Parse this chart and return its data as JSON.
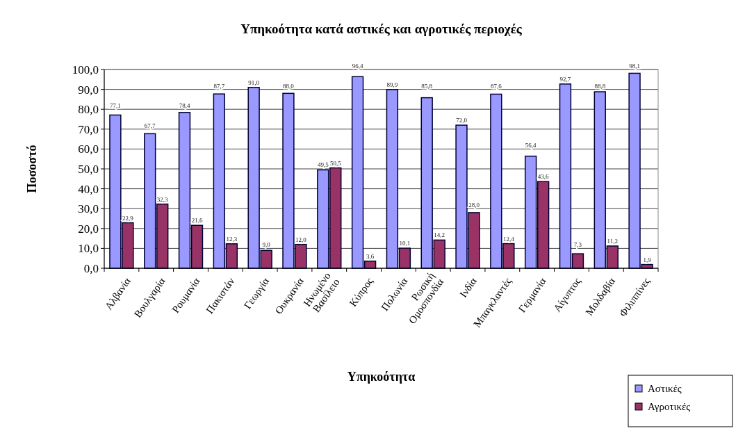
{
  "chart_data": {
    "type": "bar",
    "title": "Υπηκοότητα κατά αστικές και αγροτικές περιοχές",
    "xlabel": "Υπηκοότητα",
    "ylabel": "Ποσοστό",
    "categories": [
      "Αλβανία",
      "Βουλγαρία",
      "Ρουμανία",
      "Πακιστάν",
      "Γεωργία",
      "Ουκρανία",
      "Ηνωμένο Βασίλειο",
      "Κύπρος",
      "Πολωνία",
      "Ρωσική Ομοσπονδία",
      "Ινδία",
      "Μπαγκλαντές",
      "Γερμανία",
      "Αίγυπτος",
      "Μολδαβία",
      "Φιλιππίνες"
    ],
    "series": [
      {
        "name": "Αστικές",
        "color": "#9999ff",
        "values": [
          77.1,
          67.7,
          78.4,
          87.7,
          91.0,
          88.0,
          49.5,
          96.4,
          89.9,
          85.8,
          72.0,
          87.6,
          56.4,
          92.7,
          88.8,
          98.1
        ],
        "value_labels": [
          "77,1",
          "67,7",
          "78,4",
          "87,7",
          "91,0",
          "88,0",
          "49,5",
          "96,4",
          "89,9",
          "85,8",
          "72,0",
          "87,6",
          "56,4",
          "92,7",
          "88,8",
          "98,1"
        ]
      },
      {
        "name": "Αγροτικές",
        "color": "#993366",
        "values": [
          22.9,
          32.3,
          21.6,
          12.3,
          9.0,
          12.0,
          50.5,
          3.6,
          10.1,
          14.2,
          28.0,
          12.4,
          43.6,
          7.3,
          11.2,
          1.9
        ],
        "value_labels": [
          "22,9",
          "32,3",
          "21,6",
          "12,3",
          "9,0",
          "12,0",
          "50,5",
          "3,6",
          "10,1",
          "14,2",
          "28,0",
          "12,4",
          "43,6",
          "7,3",
          "11,2",
          "1,9"
        ]
      }
    ],
    "ylim": [
      0,
      100
    ],
    "yticks": [
      {
        "value": 0,
        "label": "0,0"
      },
      {
        "value": 10,
        "label": "10,0"
      },
      {
        "value": 20,
        "label": "20,0"
      },
      {
        "value": 30,
        "label": "30,0"
      },
      {
        "value": 40,
        "label": "40,0"
      },
      {
        "value": 50,
        "label": "50,0"
      },
      {
        "value": 60,
        "label": "60,0"
      },
      {
        "value": 70,
        "label": "70,0"
      },
      {
        "value": 80,
        "label": "80,0"
      },
      {
        "value": 90,
        "label": "90,0"
      },
      {
        "value": 100,
        "label": "100,0"
      }
    ],
    "grid": "y",
    "legend": "bottom right"
  }
}
